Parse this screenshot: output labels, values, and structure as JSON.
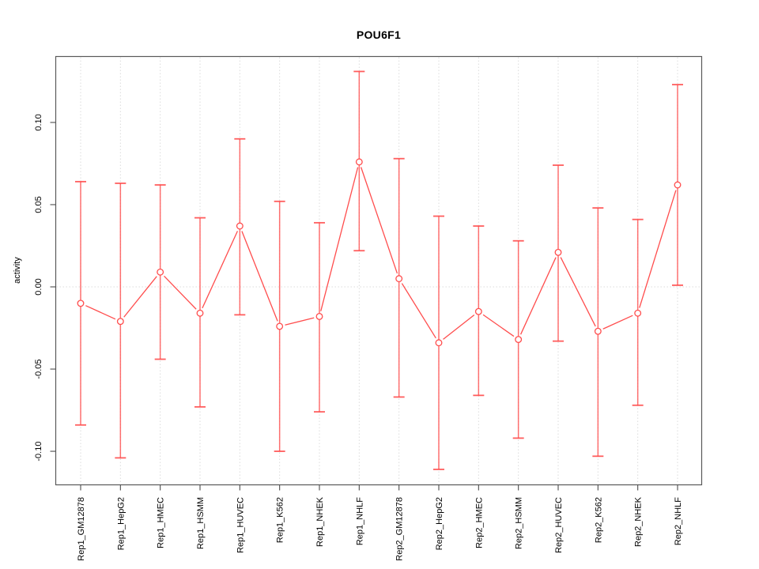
{
  "header": {
    "title": "POU6F1"
  },
  "chart_data": {
    "type": "line",
    "title": "POU6F1",
    "xlabel": "",
    "ylabel": "activity",
    "legend_position": "none",
    "grid": "dotted vertical gridline at each category; dotted horizontal line at y=0",
    "marker": "open-circle",
    "error_bars": true,
    "categories": [
      "Rep1_GM12878",
      "Rep1_HepG2",
      "Rep1_HMEC",
      "Rep1_HSMM",
      "Rep1_HUVEC",
      "Rep1_K562",
      "Rep1_NHEK",
      "Rep1_NHLF",
      "Rep2_GM12878",
      "Rep2_HepG2",
      "Rep2_HMEC",
      "Rep2_HSMM",
      "Rep2_HUVEC",
      "Rep2_K562",
      "Rep2_NHEK",
      "Rep2_NHLF"
    ],
    "series": [
      {
        "name": "activity",
        "means": [
          -0.01,
          -0.021,
          0.009,
          -0.016,
          0.037,
          -0.024,
          -0.018,
          0.076,
          0.005,
          -0.034,
          -0.015,
          -0.032,
          0.021,
          -0.027,
          -0.016,
          0.062
        ],
        "upper": [
          0.064,
          0.063,
          0.062,
          0.042,
          0.09,
          0.052,
          0.039,
          0.131,
          0.078,
          0.043,
          0.037,
          0.028,
          0.074,
          0.048,
          0.041,
          0.123
        ],
        "lower": [
          -0.084,
          -0.104,
          -0.044,
          -0.073,
          -0.017,
          -0.1,
          -0.076,
          0.022,
          -0.067,
          -0.111,
          -0.066,
          -0.092,
          -0.033,
          -0.103,
          -0.072,
          0.001
        ]
      }
    ],
    "y_ticks": [
      -0.1,
      -0.05,
      0.0,
      0.05,
      0.1
    ],
    "y_tick_labels": [
      "-0.10",
      "-0.05",
      "0.00",
      "0.05",
      "0.10"
    ],
    "ylim": [
      -0.1204,
      0.1401
    ],
    "colors": {
      "series": "#ff4d4d",
      "grid": "#dbdbdb",
      "axis": "#4d4d4d",
      "text": "#000000",
      "background": "#ffffff"
    }
  }
}
